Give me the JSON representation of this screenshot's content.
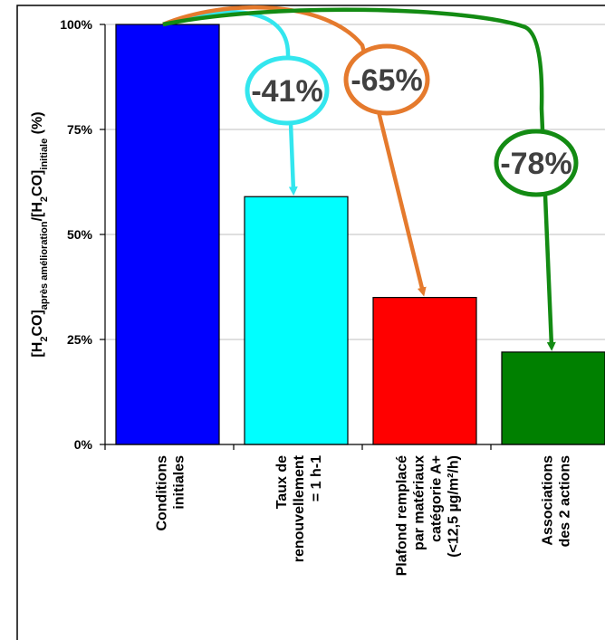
{
  "chart_data": {
    "type": "bar",
    "categories": [
      [
        "Conditions",
        "initiales"
      ],
      [
        "Taux de",
        "renouvellement",
        "= 1 h-1"
      ],
      [
        "Plafond remplacé",
        "par matériaux",
        "catégorie A+",
        "(<12,5 µg/m²/h)"
      ],
      [
        "Associations",
        "des 2 actions"
      ]
    ],
    "values": [
      100,
      59,
      35,
      22
    ],
    "colors": [
      "#0000ff",
      "#00ffff",
      "#ff0000",
      "#008000"
    ],
    "ylim": [
      0,
      100
    ],
    "yticks": [
      "0%",
      "25%",
      "50%",
      "75%",
      "100%"
    ],
    "ylabel": {
      "parts": [
        {
          "t": "[H",
          "sub": false
        },
        {
          "t": "2",
          "sub": true
        },
        {
          "t": "CO]",
          "sub": false
        },
        {
          "t": "après amélioration",
          "sub": true
        },
        {
          "t": "/[H",
          "sub": false
        },
        {
          "t": "2",
          "sub": true
        },
        {
          "t": "CO]",
          "sub": false
        },
        {
          "t": "initiale",
          "sub": true
        },
        {
          "t": " (%)",
          "sub": false
        }
      ]
    },
    "grid": true,
    "annotations": [
      {
        "text": "-41%",
        "color": "#33e6ee",
        "from": 0,
        "to": 1
      },
      {
        "text": "-65%",
        "color": "#e57a2d",
        "from": 0,
        "to": 2
      },
      {
        "text": "-78%",
        "color": "#138b13",
        "from": 0,
        "to": 3
      }
    ]
  }
}
